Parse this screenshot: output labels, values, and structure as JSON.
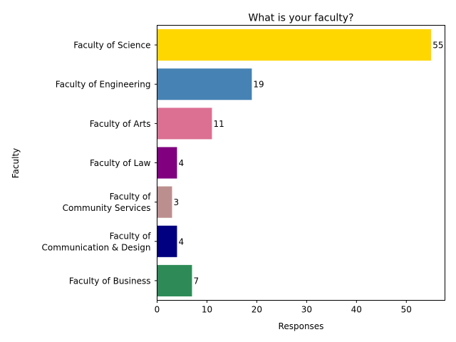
{
  "chart_data": {
    "type": "bar",
    "orientation": "horizontal",
    "title": "What is your faculty?",
    "xlabel": "Responses",
    "ylabel": "Faculty",
    "xlim": [
      0,
      57.75
    ],
    "xticks": [
      0,
      10,
      20,
      30,
      40,
      50
    ],
    "grid": false,
    "categories": [
      "Faculty of Science",
      "Faculty of Engineering",
      "Faculty of Arts",
      "Faculty of Law",
      "Faculty of\nCommunity Services",
      "Faculty of\nCommunication & Design",
      "Faculty of Business"
    ],
    "values": [
      55,
      19,
      11,
      4,
      3,
      4,
      7
    ],
    "colors": [
      "#ffd700",
      "#4682b4",
      "#db7093",
      "#800080",
      "#bc8f8f",
      "#000080",
      "#2e8b57"
    ]
  }
}
